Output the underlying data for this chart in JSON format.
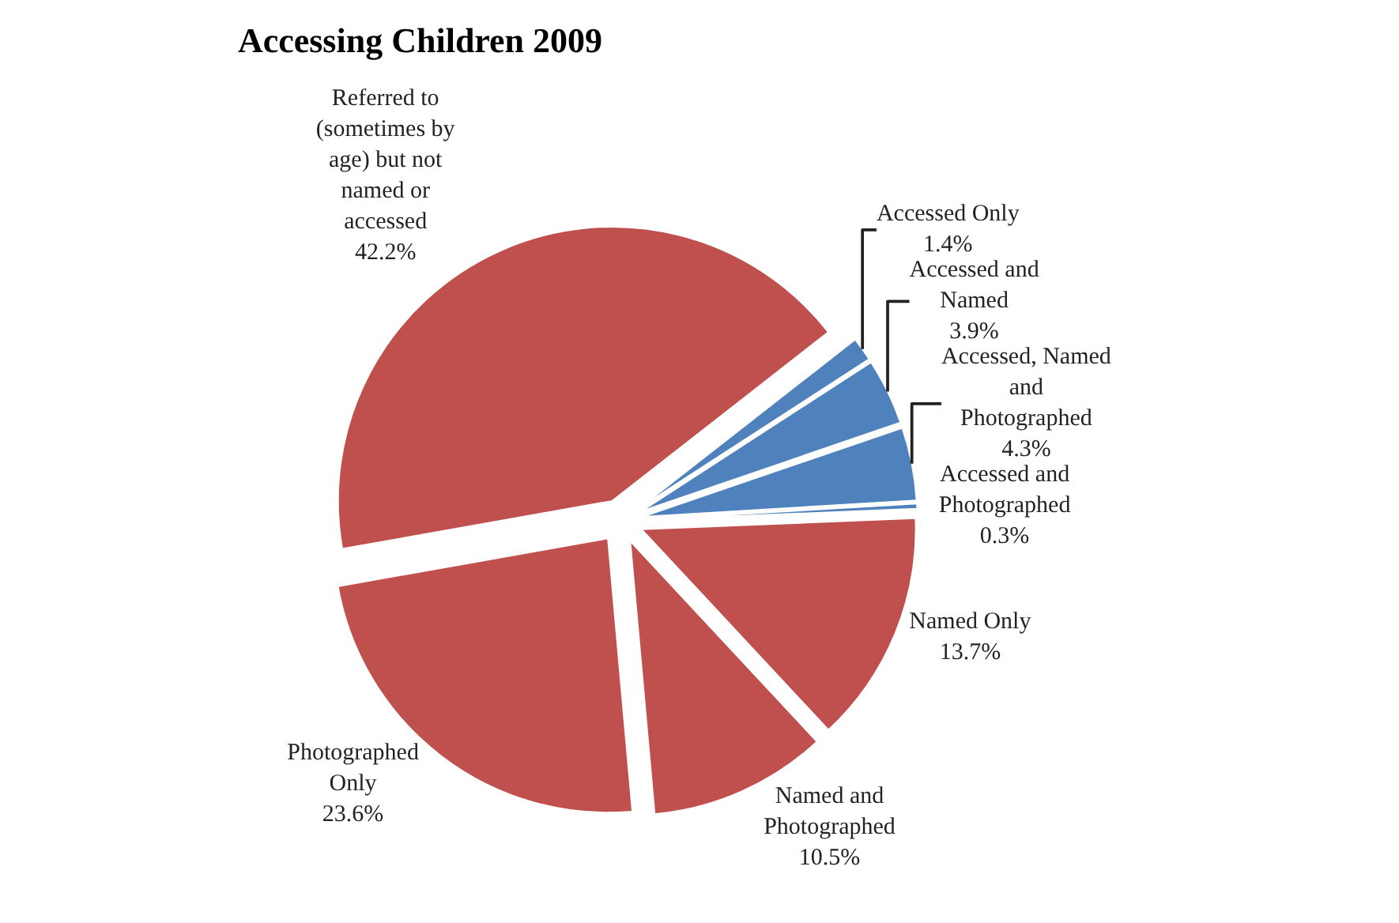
{
  "chart_data": {
    "type": "pie",
    "title": "Accessing Children 2009",
    "categories": [
      "Accessed Only",
      "Accessed and Named",
      "Accessed, Named and Photographed",
      "Accessed and Photographed",
      "Named Only",
      "Named and Photographed",
      "Photographed Only",
      "Referred to (sometimes by age) but not named or accessed"
    ],
    "values": [
      1.4,
      3.9,
      4.3,
      0.3,
      13.7,
      10.5,
      23.6,
      42.2
    ],
    "colors": [
      "#4f81bd",
      "#4f81bd",
      "#4f81bd",
      "#4f81bd",
      "#c0504d",
      "#c0504d",
      "#c0504d",
      "#c0504d"
    ],
    "value_labels": [
      "1.4%",
      "3.9%",
      "4.3%",
      "0.3%",
      "13.7%",
      "10.5%",
      "23.6%",
      "42.2%"
    ],
    "legend": false
  }
}
